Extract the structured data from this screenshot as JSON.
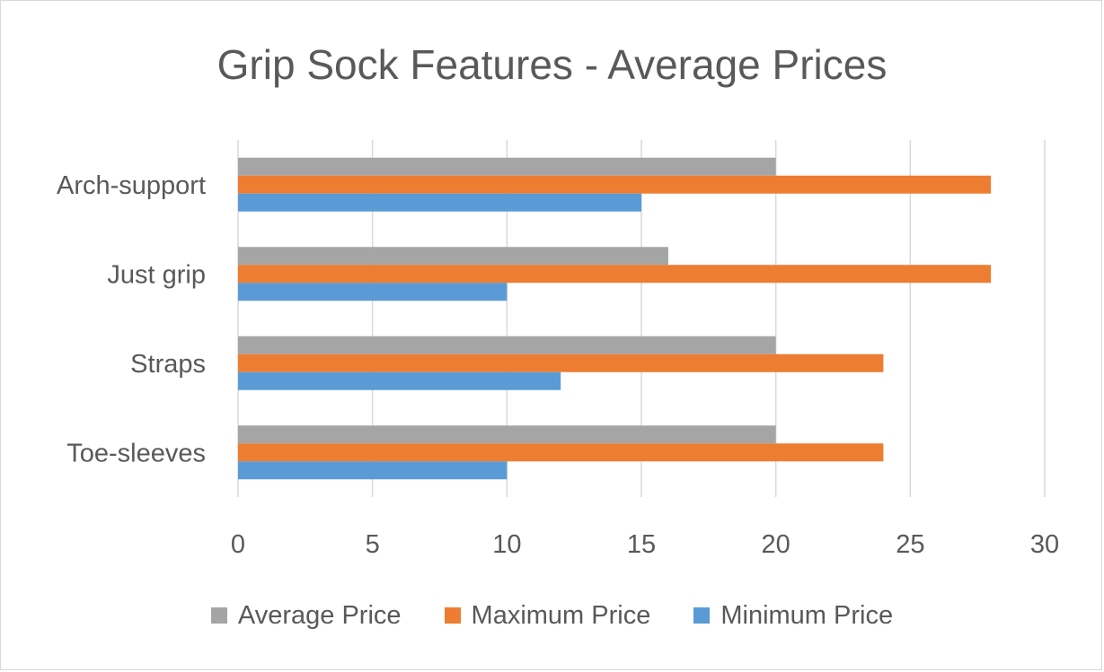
{
  "chart_data": {
    "type": "bar",
    "orientation": "horizontal",
    "title": "Grip Sock Features - Average Prices",
    "categories": [
      "Arch-support",
      "Just grip",
      "Straps",
      "Toe-sleeves"
    ],
    "series": [
      {
        "name": "Average Price",
        "color": "#a5a5a5",
        "values": [
          20,
          16,
          20,
          20
        ]
      },
      {
        "name": "Maximum Price",
        "color": "#ed7d31",
        "values": [
          28,
          28,
          24,
          24
        ]
      },
      {
        "name": "Minimum Price",
        "color": "#5b9bd5",
        "values": [
          15,
          10,
          12,
          10
        ]
      }
    ],
    "xlim": [
      0,
      30
    ],
    "xticks": [
      "0",
      "5",
      "10",
      "15",
      "20",
      "25",
      "30"
    ],
    "grid": true,
    "legend_position": "bottom"
  }
}
